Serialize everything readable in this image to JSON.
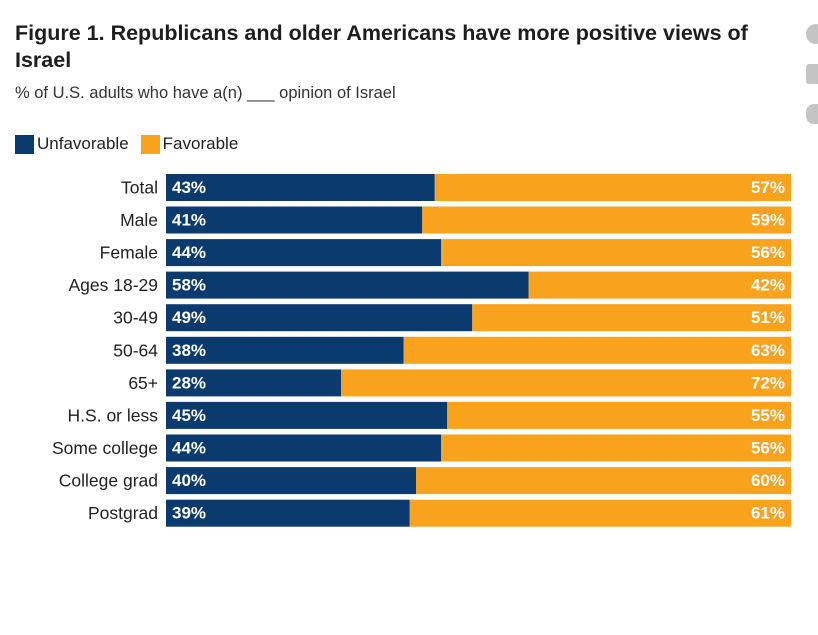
{
  "title": "Figure 1. Republicans and older Americans have more positive views of Israel",
  "subtitle": "% of U.S. adults who have a(n) ___ opinion of Israel",
  "legend": {
    "unfavorable": "Unfavorable",
    "favorable": "Favorable"
  },
  "colors": {
    "unfavorable": "#0b3a6e",
    "favorable": "#f8a21d",
    "label_text": "#ffffff"
  },
  "share_icons": [
    "facebook-icon",
    "linkedin-icon",
    "twitter-icon"
  ],
  "chart_data": {
    "type": "bar",
    "orientation": "horizontal",
    "stacked": true,
    "title": "Figure 1. Republicans and older Americans have more positive views of Israel",
    "subtitle": "% of U.S. adults who have a(n) ___ opinion of Israel",
    "xlim": [
      0,
      100
    ],
    "categories": [
      "Total",
      "Male",
      "Female",
      "Ages 18-29",
      "30-49",
      "50-64",
      "65+",
      "H.S. or less",
      "Some college",
      "College grad",
      "Postgrad"
    ],
    "groups": [
      [
        "Total"
      ],
      [
        "Male",
        "Female"
      ],
      [
        "Ages 18-29",
        "30-49",
        "50-64",
        "65+"
      ],
      [
        "H.S. or less",
        "Some college",
        "College grad",
        "Postgrad"
      ]
    ],
    "series": [
      {
        "name": "Unfavorable",
        "values": [
          43,
          41,
          44,
          58,
          49,
          38,
          28,
          45,
          44,
          40,
          39
        ]
      },
      {
        "name": "Favorable",
        "values": [
          57,
          59,
          56,
          42,
          51,
          63,
          72,
          55,
          56,
          60,
          61
        ]
      }
    ],
    "data_labels": true,
    "label_suffix": "%",
    "legend_position": "top-left"
  }
}
